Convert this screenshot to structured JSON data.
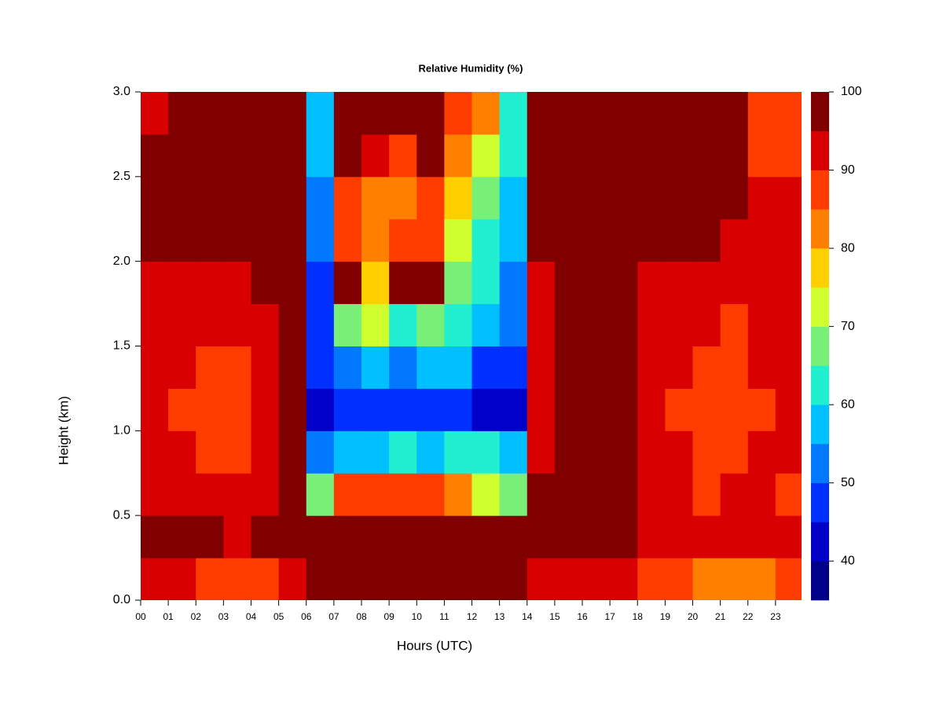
{
  "chart_data": {
    "type": "contour",
    "title": "Relative Humidity (%)",
    "x_label": "Hours (UTC)",
    "y_label": "Height (km)",
    "x": [
      0.5,
      1.5,
      2.5,
      3.5,
      4.5,
      5.5,
      6.5,
      7.5,
      8.5,
      9.5,
      10.5,
      11.5,
      12.5,
      13.5,
      14.5,
      15.5,
      16.5,
      17.5,
      18.5,
      19.5,
      20.5,
      21.5,
      22.5,
      23.5
    ],
    "y": [
      0.125,
      0.375,
      0.625,
      0.875,
      1.125,
      1.375,
      1.625,
      1.875,
      2.125,
      2.375,
      2.625,
      2.875
    ],
    "z": [
      [
        92,
        92,
        88,
        86,
        90,
        94,
        97,
        97,
        97,
        97,
        97,
        97,
        97,
        96,
        95,
        95,
        94,
        92,
        90,
        86,
        82,
        82,
        84,
        86
      ],
      [
        97,
        97,
        96,
        95,
        97,
        97,
        97,
        97,
        97,
        97,
        97,
        97,
        97,
        97,
        97,
        97,
        97,
        97,
        93,
        92,
        91,
        92,
        92,
        91
      ],
      [
        93,
        92,
        92,
        91,
        93,
        97,
        70,
        90,
        88,
        90,
        88,
        85,
        75,
        70,
        97,
        97,
        97,
        97,
        93,
        91,
        90,
        91,
        91,
        90
      ],
      [
        92,
        91,
        90,
        90,
        93,
        97,
        52,
        60,
        58,
        62,
        60,
        65,
        62,
        60,
        92,
        97,
        97,
        97,
        92,
        91,
        89,
        90,
        91,
        91
      ],
      [
        91,
        90,
        88,
        88,
        92,
        97,
        45,
        48,
        50,
        50,
        48,
        50,
        45,
        45,
        91,
        97,
        97,
        97,
        91,
        90,
        89,
        89,
        90,
        91
      ],
      [
        92,
        91,
        90,
        90,
        94,
        97,
        48,
        55,
        58,
        55,
        57,
        58,
        50,
        50,
        94,
        97,
        97,
        97,
        92,
        91,
        90,
        90,
        91,
        91
      ],
      [
        93,
        92,
        91,
        91,
        95,
        97,
        50,
        70,
        72,
        62,
        68,
        62,
        58,
        55,
        92,
        97,
        97,
        97,
        92,
        92,
        91,
        90,
        91,
        92
      ],
      [
        93,
        92,
        92,
        92,
        96,
        97,
        50,
        97,
        80,
        97,
        97,
        68,
        62,
        55,
        91,
        97,
        97,
        97,
        94,
        93,
        92,
        91,
        92,
        93
      ],
      [
        97,
        97,
        97,
        97,
        97,
        97,
        52,
        90,
        85,
        88,
        90,
        72,
        65,
        58,
        97,
        97,
        97,
        97,
        97,
        97,
        96,
        95,
        94,
        93
      ],
      [
        97,
        97,
        97,
        97,
        97,
        97,
        55,
        86,
        82,
        84,
        88,
        80,
        68,
        58,
        97,
        97,
        97,
        97,
        97,
        97,
        97,
        96,
        92,
        91
      ],
      [
        97,
        97,
        97,
        97,
        97,
        97,
        58,
        97,
        92,
        90,
        97,
        85,
        75,
        62,
        97,
        97,
        97,
        97,
        97,
        97,
        97,
        96,
        90,
        88
      ],
      [
        94,
        97,
        97,
        97,
        97,
        97,
        60,
        97,
        97,
        97,
        97,
        88,
        82,
        65,
        97,
        97,
        97,
        97,
        97,
        97,
        97,
        96,
        88,
        86
      ]
    ],
    "xlim": [
      0,
      24
    ],
    "ylim": [
      0,
      3
    ],
    "xticks": [
      {
        "value": 0,
        "label": "00"
      },
      {
        "value": 1,
        "label": "01"
      },
      {
        "value": 2,
        "label": "02"
      },
      {
        "value": 3,
        "label": "03"
      },
      {
        "value": 4,
        "label": "04"
      },
      {
        "value": 5,
        "label": "05"
      },
      {
        "value": 6,
        "label": "06"
      },
      {
        "value": 7,
        "label": "07"
      },
      {
        "value": 8,
        "label": "08"
      },
      {
        "value": 9,
        "label": "09"
      },
      {
        "value": 10,
        "label": "10"
      },
      {
        "value": 11,
        "label": "11"
      },
      {
        "value": 12,
        "label": "12"
      },
      {
        "value": 13,
        "label": "13"
      },
      {
        "value": 14,
        "label": "14"
      },
      {
        "value": 15,
        "label": "15"
      },
      {
        "value": 16,
        "label": "16"
      },
      {
        "value": 17,
        "label": "17"
      },
      {
        "value": 18,
        "label": "18"
      },
      {
        "value": 19,
        "label": "19"
      },
      {
        "value": 20,
        "label": "20"
      },
      {
        "value": 21,
        "label": "21"
      },
      {
        "value": 22,
        "label": "22"
      },
      {
        "value": 23,
        "label": "23"
      }
    ],
    "yticks": [
      {
        "value": 0,
        "label": "0.0"
      },
      0.5,
      {
        "value": 1,
        "label": "1.0"
      },
      1.5,
      {
        "value": 2,
        "label": "2.0"
      },
      2.5,
      {
        "value": 3,
        "label": "3.0"
      }
    ],
    "levels": [
      35,
      40,
      45,
      50,
      55,
      60,
      65,
      70,
      75,
      80,
      85,
      90,
      95,
      100
    ],
    "colors": [
      "#00008b",
      "#0000c8",
      "#0030ff",
      "#0078ff",
      "#00c0ff",
      "#20f0d0",
      "#78f078",
      "#d0ff30",
      "#ffd000",
      "#ff8000",
      "#ff3c00",
      "#d80000",
      "#800000"
    ],
    "colorbar_ticks": [
      40,
      50,
      60,
      70,
      80,
      90,
      100
    ]
  }
}
